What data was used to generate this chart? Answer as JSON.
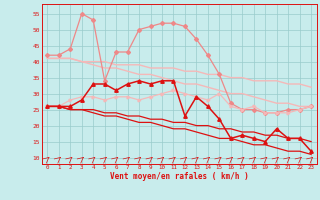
{
  "x": [
    0,
    1,
    2,
    3,
    4,
    5,
    6,
    7,
    8,
    9,
    10,
    11,
    12,
    13,
    14,
    15,
    16,
    17,
    18,
    19,
    20,
    21,
    22,
    23
  ],
  "line_trend_light1": [
    41,
    41,
    41,
    40,
    40,
    40,
    39,
    39,
    39,
    38,
    38,
    38,
    37,
    37,
    36,
    36,
    35,
    35,
    34,
    34,
    34,
    33,
    33,
    32
  ],
  "line_trend_light2": [
    41,
    41,
    41,
    40,
    39,
    38,
    38,
    37,
    36,
    36,
    35,
    34,
    33,
    33,
    32,
    31,
    30,
    30,
    29,
    28,
    27,
    27,
    26,
    26
  ],
  "line_gust_light": [
    42,
    42,
    44,
    55,
    53,
    34,
    43,
    43,
    50,
    51,
    52,
    52,
    51,
    47,
    42,
    36,
    27,
    25,
    25,
    24,
    24,
    25,
    25,
    26
  ],
  "line_mean_light": [
    26,
    26,
    28,
    29,
    29,
    28,
    29,
    29,
    28,
    29,
    30,
    31,
    30,
    29,
    28,
    30,
    26,
    25,
    26,
    24,
    24,
    24,
    25,
    26
  ],
  "line_mean_dark": [
    26,
    26,
    26,
    28,
    33,
    33,
    31,
    33,
    34,
    33,
    34,
    34,
    23,
    29,
    26,
    22,
    16,
    17,
    16,
    15,
    19,
    16,
    16,
    12
  ],
  "line_trend_dark1": [
    26,
    26,
    25,
    25,
    25,
    24,
    24,
    23,
    23,
    22,
    22,
    21,
    21,
    20,
    20,
    19,
    19,
    18,
    18,
    17,
    17,
    16,
    16,
    15
  ],
  "line_trend_dark2": [
    26,
    26,
    25,
    25,
    24,
    23,
    23,
    22,
    21,
    21,
    20,
    19,
    19,
    18,
    17,
    16,
    16,
    15,
    14,
    14,
    13,
    12,
    12,
    11
  ],
  "background": "#c8ecec",
  "grid_color": "#99cccc",
  "color_light_pink": "#f5b8b8",
  "color_medium_pink": "#ee8888",
  "color_dark_red": "#dd1111",
  "ylabel_vals": [
    10,
    15,
    20,
    25,
    30,
    35,
    40,
    45,
    50,
    55
  ],
  "xlabel": "Vent moyen/en rafales ( km/h )",
  "ylim": [
    8,
    58
  ],
  "xlim": [
    -0.5,
    23.5
  ]
}
